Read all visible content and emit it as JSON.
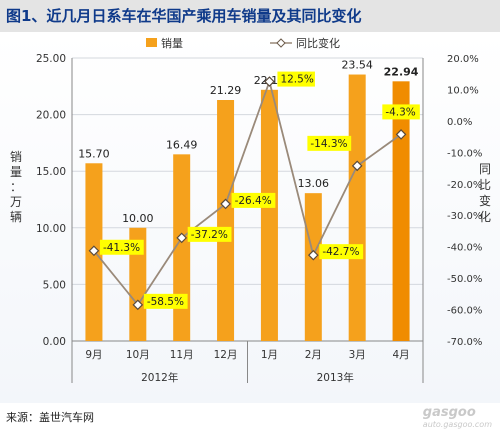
{
  "title": "图1、近几月日系车在华国产乘用车销量及其同比变化",
  "source": "来源：盖世汽车网",
  "watermark": "gasgoo",
  "watermark_sub": "auto.gasgoo.com",
  "chart_data": {
    "type": "bar",
    "categories": [
      "9月",
      "10月",
      "11月",
      "12月",
      "1月",
      "2月",
      "3月",
      "4月"
    ],
    "year_groups": [
      {
        "label": "2012年",
        "start": 0,
        "end": 3
      },
      {
        "label": "2013年",
        "start": 4,
        "end": 7
      }
    ],
    "series": [
      {
        "name": "销量",
        "type": "bar",
        "axis": "left",
        "values": [
          15.7,
          10.0,
          16.49,
          21.29,
          22.19,
          13.06,
          23.54,
          22.94
        ],
        "labels": [
          "15.70",
          "10.00",
          "16.49",
          "21.29",
          "22.19",
          "13.06",
          "23.54",
          "22.94"
        ]
      },
      {
        "name": "同比变化",
        "type": "line",
        "axis": "right",
        "values": [
          -41.3,
          -58.5,
          -37.2,
          -26.4,
          12.5,
          -42.7,
          -14.3,
          -4.3
        ],
        "labels": [
          "-41.3%",
          "-58.5%",
          "-37.2%",
          "-26.4%",
          "12.5%",
          "-42.7%",
          "-14.3%",
          "-4.3%"
        ]
      }
    ],
    "ylabel": "销量：万辆",
    "y2label": "同比变化",
    "ylim": [
      0,
      25
    ],
    "yticks": [
      "0.00",
      "5.00",
      "10.00",
      "15.00",
      "20.00",
      "25.00"
    ],
    "y2lim": [
      -70,
      20
    ],
    "y2ticks": [
      "-70.0%",
      "-60.0%",
      "-50.0%",
      "-40.0%",
      "-30.0%",
      "-20.0%",
      "-10.0%",
      "0.0%",
      "10.0%",
      "20.0%"
    ],
    "legend_position": "top",
    "grid": true,
    "colors": {
      "bar": "#f5a11c",
      "bar_last": "#f08c00",
      "line": "#9a8a7a",
      "label_bg": "#ffff00"
    }
  }
}
